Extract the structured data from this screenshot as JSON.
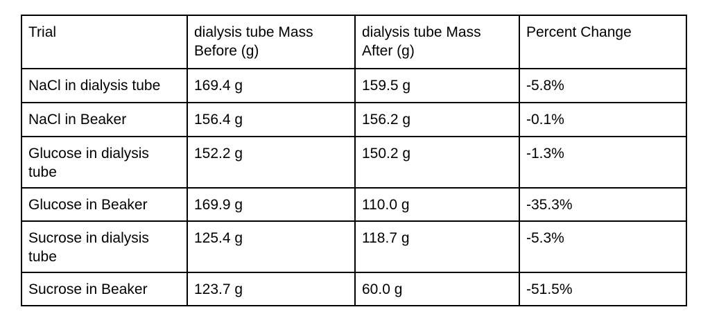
{
  "chart_data": {
    "type": "table",
    "columns": [
      "Trial",
      "dialysis tube Mass Before (g)",
      "dialysis tube Mass After (g)",
      "Percent Change"
    ],
    "rows": [
      [
        "NaCl in dialysis tube",
        "169.4 g",
        "159.5 g",
        "-5.8%"
      ],
      [
        "NaCl in Beaker",
        "156.4 g",
        "156.2 g",
        "-0.1%"
      ],
      [
        "Glucose in dialysis tube",
        "152.2 g",
        "150.2 g",
        "-1.3%"
      ],
      [
        "Glucose in Beaker",
        "169.9 g",
        "110.0 g",
        "-35.3%"
      ],
      [
        "Sucrose in dialysis tube",
        "125.4 g",
        "118.7 g",
        "-5.3%"
      ],
      [
        "Sucrose in Beaker",
        "123.7 g",
        "60.0 g",
        "-51.5%"
      ]
    ],
    "series": [
      {
        "name": "mass_before_g",
        "values": [
          169.4,
          156.4,
          152.2,
          169.9,
          125.4,
          123.7
        ]
      },
      {
        "name": "mass_after_g",
        "values": [
          159.5,
          156.2,
          150.2,
          110.0,
          118.7,
          60.0
        ]
      },
      {
        "name": "percent_change",
        "values": [
          -5.8,
          -0.1,
          -1.3,
          -35.3,
          -5.3,
          -51.5
        ]
      }
    ],
    "colors": {
      "border": "#000000",
      "text": "#000000",
      "background": "#ffffff"
    }
  }
}
